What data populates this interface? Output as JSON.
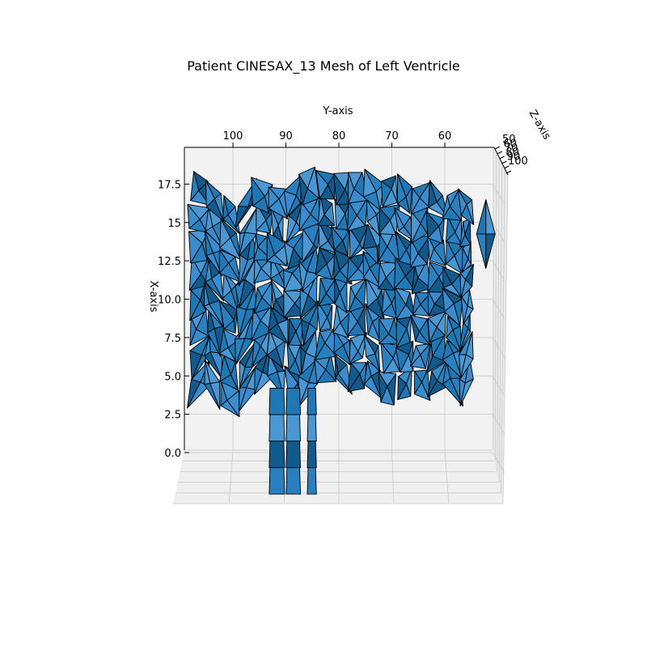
{
  "chart_data": {
    "type": "surface",
    "title": "Patient CINESAX_13 Mesh of Left Ventricle",
    "xlabel": "X-axis",
    "ylabel": "Y-axis",
    "zlabel": "Z-axis",
    "x_ticks": [
      0.0,
      2.5,
      5.0,
      7.5,
      10.0,
      12.5,
      15.0,
      17.5
    ],
    "x_tick_labels": [
      "0.0",
      "2.5",
      "5.0",
      "7.5",
      "10.0",
      "12.5",
      "15",
      "17.5"
    ],
    "y_ticks": [
      100,
      90,
      80,
      70,
      60
    ],
    "y_tick_labels": [
      "100",
      "90",
      "80",
      "70",
      "60"
    ],
    "z_ticks": [
      50,
      60,
      70,
      80,
      90,
      100
    ],
    "z_tick_labels": [
      "50",
      "60",
      "70",
      "80",
      "90",
      "100"
    ],
    "x_range": [
      -0.5,
      19.0
    ],
    "y_range": [
      109,
      50
    ],
    "grid": true,
    "colors": {
      "face": "#1f77b4",
      "face_light": "#4b97d1",
      "face_dark": "#135a8c",
      "edge": "#000000",
      "pane": "#f2f2f2",
      "grid": "#c8c8c8"
    },
    "mesh": {
      "y_columns": [
        108,
        105,
        102,
        99,
        96,
        93,
        90,
        87,
        84,
        81,
        78,
        75,
        72,
        69,
        66,
        63,
        60,
        57,
        55
      ],
      "top_x": [
        18.3,
        17.6,
        16.8,
        16.1,
        17.8,
        17.3,
        17.0,
        18.2,
        18.5,
        18.0,
        18.1,
        18.4,
        17.7,
        18.0,
        17.2,
        17.6,
        16.9,
        17.0,
        16.5
      ],
      "bottom_x": [
        3.0,
        4.5,
        3.0,
        2.5,
        4.0,
        5.0,
        3.8,
        3.2,
        4.5,
        4.7,
        3.9,
        4.3,
        3.5,
        3.3,
        3.8,
        3.6,
        4.4,
        3.1,
        4.8
      ],
      "lower_extension": {
        "y_from": 93,
        "y_to": 85,
        "x_min": -2.7
      },
      "right_patch": {
        "y_from": 54,
        "y_to": 50.5,
        "x_top": 16.5,
        "x_bottom": 12.0
      }
    }
  }
}
